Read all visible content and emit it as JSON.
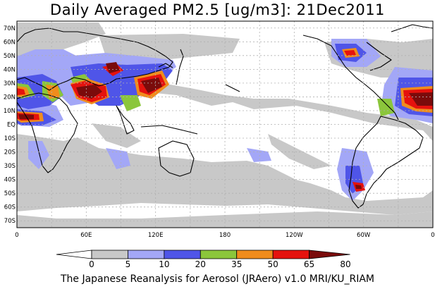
{
  "title": "Daily Averaged PM2.5 [ug/m3]: 21Dec2011",
  "footer": "The Japanese Reanalysis for Aerosol (JRAero) v1.0 MRI/KU_RIAM",
  "lat_labels": [
    "70N",
    "60N",
    "50N",
    "40N",
    "30N",
    "20N",
    "10N",
    "EQ",
    "10S",
    "20S",
    "30S",
    "40S",
    "50S",
    "60S",
    "70S"
  ],
  "lon_labels": [
    "0",
    "60E",
    "120E",
    "180",
    "120W",
    "60W",
    "0"
  ],
  "colorbar": {
    "ticks": [
      "0",
      "5",
      "10",
      "20",
      "35",
      "50",
      "65",
      "80"
    ],
    "colors": [
      "#ffffff",
      "#c8c8c8",
      "#a3a7f7",
      "#4f55e8",
      "#8bc63b",
      "#f08c1c",
      "#e5120e",
      "#7a0b0b"
    ]
  },
  "colors": {
    "ocean": "#ffffff",
    "grid": "#b0b0b0",
    "coast": "#000000",
    "gray": "#c8c8c8",
    "lightblue": "#a3a7f7",
    "blue": "#4f55e8",
    "green": "#8bc63b",
    "orange": "#f08c1c",
    "red": "#e5120e",
    "darkred": "#7a0b0b"
  }
}
